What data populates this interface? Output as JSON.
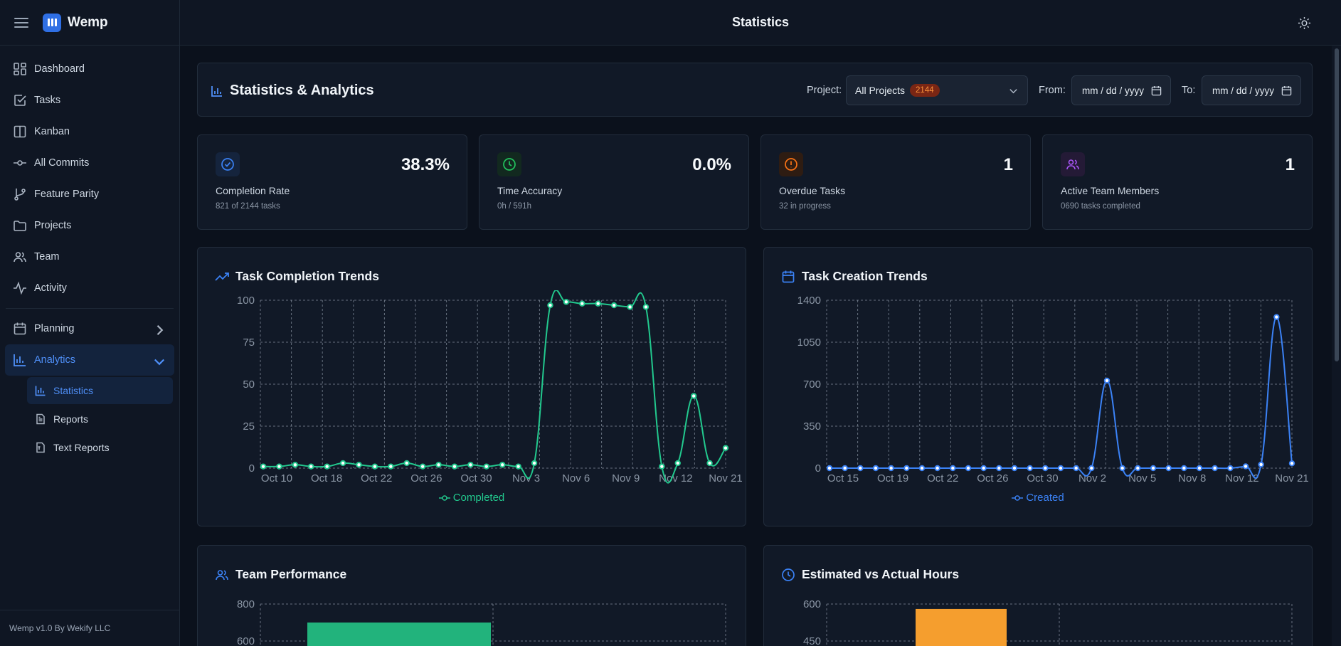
{
  "sidebar": {
    "brand": "Wemp",
    "items": [
      {
        "label": "Dashboard",
        "icon": "dashboard-icon"
      },
      {
        "label": "Tasks",
        "icon": "tasks-icon"
      },
      {
        "label": "Kanban",
        "icon": "kanban-icon"
      },
      {
        "label": "All Commits",
        "icon": "commit-icon"
      },
      {
        "label": "Feature Parity",
        "icon": "branch-icon"
      },
      {
        "label": "Projects",
        "icon": "folder-icon"
      },
      {
        "label": "Team",
        "icon": "team-icon"
      },
      {
        "label": "Activity",
        "icon": "activity-icon"
      }
    ],
    "planning": "Planning",
    "analytics": "Analytics",
    "sub_items": [
      {
        "label": "Statistics",
        "icon": "bar-chart-icon"
      },
      {
        "label": "Reports",
        "icon": "document-icon"
      },
      {
        "label": "Text Reports",
        "icon": "document-text-icon"
      }
    ],
    "footer": "Wemp v1.0 By Wekify LLC"
  },
  "topbar": {
    "title": "Statistics",
    "theme_icon": "sun-icon"
  },
  "header": {
    "title": "Statistics & Analytics",
    "project_label": "Project:",
    "project_value": "All Projects",
    "project_badge": "2144",
    "from_label": "From:",
    "from_placeholder": "mm / dd / yyyy",
    "to_label": "To:",
    "to_placeholder": "mm / dd / yyyy"
  },
  "stats": [
    {
      "value": "38.3%",
      "label": "Completion Rate",
      "sub": "821 of 2144 tasks",
      "color": "#3b82f6",
      "bg": "#15243d"
    },
    {
      "value": "0.0%",
      "label": "Time Accuracy",
      "sub": "0h / 591h",
      "color": "#22c55e",
      "bg": "#12291f"
    },
    {
      "value": "1",
      "label": "Overdue Tasks",
      "sub": "32 in progress",
      "color": "#f97316",
      "bg": "#2e1c12"
    },
    {
      "value": "1",
      "label": "Active Team Members",
      "sub": "0690 tasks completed",
      "color": "#a855f7",
      "bg": "#241a36"
    }
  ],
  "charts": {
    "completion_title": "Task Completion Trends",
    "creation_title": "Task Creation Trends",
    "team_title": "Team Performance",
    "hours_title": "Estimated vs Actual Hours"
  },
  "chart_data": [
    {
      "type": "line",
      "title": "Task Completion Trends",
      "x_tick_labels": [
        "Oct 10",
        "Oct 18",
        "Oct 22",
        "Oct 26",
        "Oct 30",
        "Nov 3",
        "Nov 6",
        "Nov 9",
        "Nov 12",
        "Nov 21"
      ],
      "yticks": [
        0,
        25,
        50,
        75,
        100
      ],
      "ylim": [
        0,
        100
      ],
      "series": [
        {
          "name": "Completed",
          "color": "#22c98e",
          "values": [
            1,
            1,
            2,
            1,
            1,
            3,
            2,
            1,
            1,
            3,
            1,
            2,
            1,
            2,
            1,
            2,
            1,
            3,
            97,
            99,
            98,
            98,
            97,
            96,
            96,
            1,
            3,
            43,
            3,
            12
          ]
        }
      ],
      "grid": true,
      "legend": "bottom"
    },
    {
      "type": "line",
      "title": "Task Creation Trends",
      "x_tick_labels": [
        "Oct 15",
        "Oct 19",
        "Oct 22",
        "Oct 26",
        "Oct 30",
        "Nov 2",
        "Nov 5",
        "Nov 8",
        "Nov 12",
        "Nov 21"
      ],
      "yticks": [
        0,
        350,
        700,
        1050,
        1400
      ],
      "ylim": [
        0,
        1400
      ],
      "series": [
        {
          "name": "Created",
          "color": "#3b82f6",
          "values": [
            0,
            0,
            0,
            0,
            0,
            0,
            0,
            0,
            0,
            0,
            0,
            0,
            0,
            0,
            0,
            0,
            0,
            0,
            730,
            0,
            0,
            0,
            0,
            0,
            0,
            0,
            0,
            15,
            30,
            1260,
            40
          ]
        }
      ],
      "grid": true,
      "legend": "bottom"
    },
    {
      "type": "bar",
      "title": "Team Performance",
      "yticks": [
        600,
        800
      ],
      "series": [
        {
          "values": [
            700
          ],
          "color": "#22b37c"
        }
      ]
    },
    {
      "type": "bar",
      "title": "Estimated vs Actual Hours",
      "yticks": [
        450,
        600
      ],
      "series": [
        {
          "values": [
            580
          ],
          "color": "#f59e2e"
        }
      ]
    }
  ]
}
